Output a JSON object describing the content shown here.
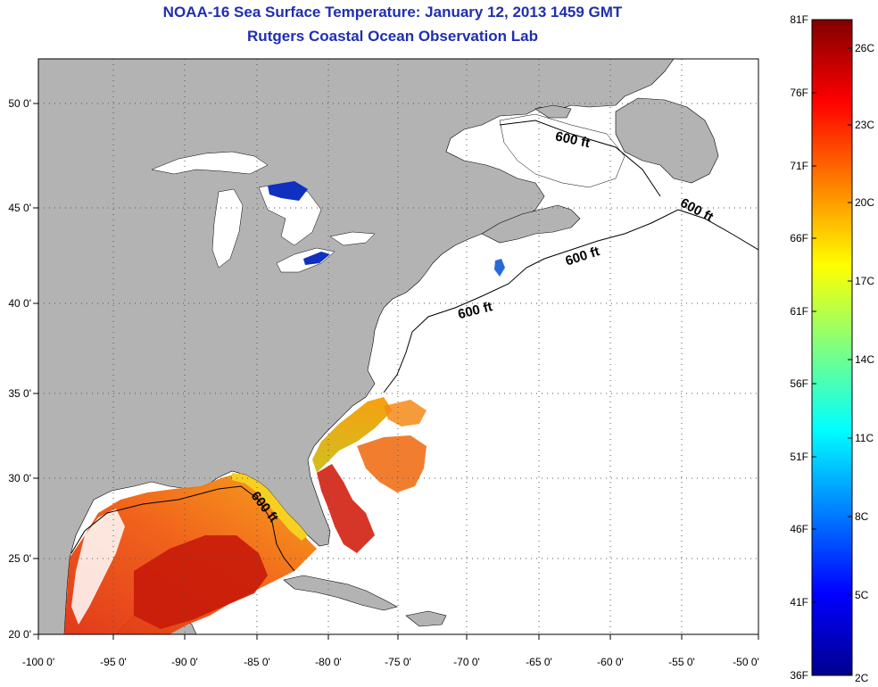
{
  "title": {
    "line1": "NOAA-16 Sea Surface Temperature:  January 12, 2013 1459 GMT",
    "line2": "Rutgers Coastal Ocean Observation Lab"
  },
  "map": {
    "lon_range": [
      -100,
      -50
    ],
    "lat_range": [
      20,
      52.5
    ],
    "x_ticks": [
      "-100 0'",
      "-95 0'",
      "-90 0'",
      "-85 0'",
      "-80 0'",
      "-75 0'",
      "-70 0'",
      "-65 0'",
      "-60 0'",
      "-55 0'",
      "-50 0'"
    ],
    "y_ticks": [
      "20 0'",
      "25 0'",
      "30 0'",
      "35 0'",
      "40 0'",
      "45 0'",
      "50 0'"
    ],
    "grid": "dotted",
    "land_color": "#b3b3b3",
    "no_data_color": "#ffffff",
    "contour_label": "600 ft"
  },
  "colorbar": {
    "min_f": 36,
    "max_f": 81,
    "fahrenheit_labels": [
      "81F",
      "76F",
      "71F",
      "66F",
      "61F",
      "56F",
      "51F",
      "46F",
      "41F",
      "36F"
    ],
    "celsius_labels": [
      "26C",
      "23C",
      "20C",
      "17C",
      "14C",
      "11C",
      "8C",
      "5C",
      "2C"
    ],
    "colormap": "jet"
  }
}
